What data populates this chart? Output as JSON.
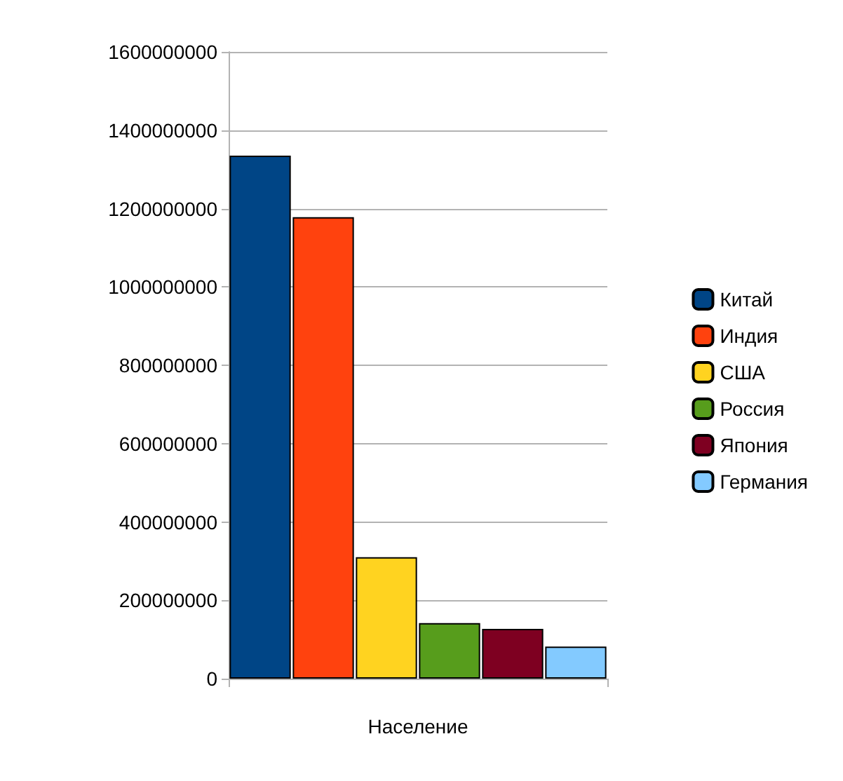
{
  "chart_data": {
    "type": "bar",
    "xlabel": "Население",
    "categories": [
      null,
      null,
      null,
      null,
      null,
      null
    ],
    "stacked": true,
    "series": [
      {
        "name": "Китай",
        "color": "#004586",
        "values": [
          1335000000,
          null,
          null,
          null,
          null,
          null
        ]
      },
      {
        "name": "Индия",
        "color": "#ff420e",
        "values": [
          null,
          1178000000,
          null,
          null,
          null,
          null
        ]
      },
      {
        "name": "США",
        "color": "#ffd320",
        "values": [
          null,
          null,
          310000000,
          null,
          null,
          null
        ]
      },
      {
        "name": "Россия",
        "color": "#579d1c",
        "values": [
          null,
          null,
          null,
          142000000,
          null,
          null
        ]
      },
      {
        "name": "Япония",
        "color": "#7e0021",
        "values": [
          null,
          null,
          null,
          null,
          127000000,
          null
        ]
      },
      {
        "name": "Германия",
        "color": "#83caff",
        "values": [
          null,
          null,
          null,
          null,
          null,
          82000000
        ]
      }
    ],
    "ylim": [
      0,
      1600000000
    ],
    "yticks": [
      0,
      200000000,
      400000000,
      600000000,
      800000000,
      1000000000,
      1200000000,
      1400000000,
      1600000000
    ],
    "grid": "y",
    "legend": "right"
  }
}
